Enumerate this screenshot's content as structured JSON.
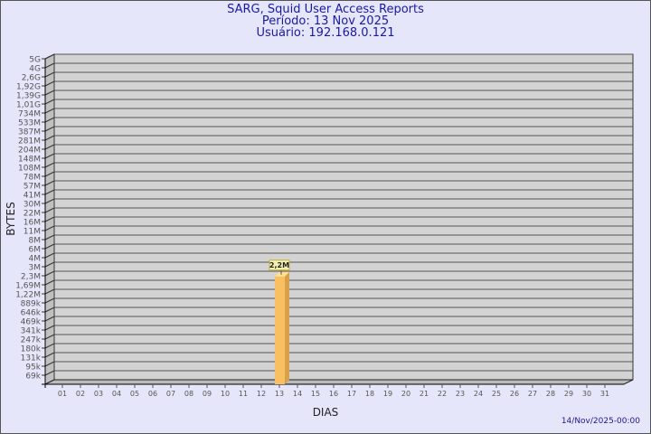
{
  "header": {
    "title": "SARG, Squid User Access Reports",
    "period": "Período: 13 Nov 2025",
    "user": "Usuário: 192.168.0.121"
  },
  "footer": {
    "timestamp": "14/Nov/2025-00:00"
  },
  "chart_data": {
    "type": "bar",
    "xlabel": "DIAS",
    "ylabel": "BYTES",
    "y_scale": "log",
    "y_tick_labels": [
      "5G",
      "4G",
      "2,6G",
      "1,92G",
      "1,39G",
      "1,01G",
      "734M",
      "533M",
      "387M",
      "281M",
      "204M",
      "148M",
      "108M",
      "78M",
      "57M",
      "41M",
      "30M",
      "22M",
      "16M",
      "11M",
      "8M",
      "6M",
      "4M",
      "3M",
      "2,3M",
      "1,69M",
      "1,22M",
      "889k",
      "646k",
      "469k",
      "341k",
      "247k",
      "180k",
      "131k",
      "95k",
      "69k"
    ],
    "categories": [
      "01",
      "02",
      "03",
      "04",
      "05",
      "06",
      "07",
      "08",
      "09",
      "10",
      "11",
      "12",
      "13",
      "14",
      "15",
      "16",
      "17",
      "18",
      "19",
      "20",
      "21",
      "22",
      "23",
      "24",
      "25",
      "26",
      "27",
      "28",
      "29",
      "30",
      "31"
    ],
    "bars": [
      {
        "day": "13",
        "value": 2200000,
        "label": "2,2M"
      }
    ],
    "grid": true,
    "colors": {
      "bar": "#f8c060",
      "bar_side": "#d8a048",
      "bar_top": "#ffe090",
      "wall": "#d3d3d3",
      "grid": "#555555",
      "label_bg": "#f4f0b0"
    }
  }
}
